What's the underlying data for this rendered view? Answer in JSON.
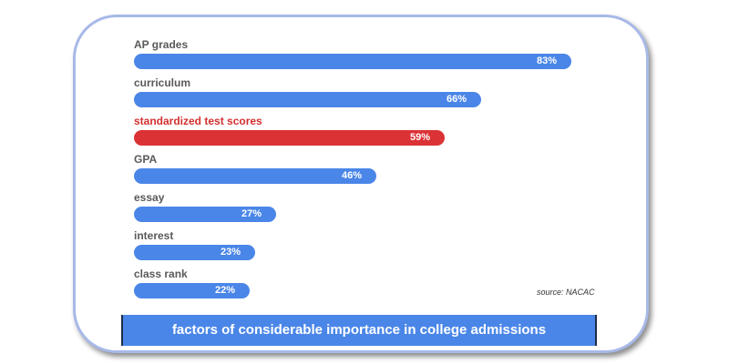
{
  "chart_data": {
    "type": "bar",
    "orientation": "horizontal",
    "categories": [
      "AP grades",
      "curriculum",
      "standardized test scores",
      "GPA",
      "essay",
      "interest",
      "class rank"
    ],
    "values": [
      83,
      66,
      59,
      46,
      27,
      23,
      22
    ],
    "value_labels": [
      "83%",
      "66%",
      "59%",
      "46%",
      "27%",
      "23%",
      "22%"
    ],
    "highlighted_category": "standardized test scores",
    "title": "factors of considerable importance in college admissions",
    "source": "source: NACAC",
    "xlabel": "",
    "ylabel": "",
    "xlim": [
      0,
      100
    ],
    "grid": false,
    "colors": {
      "bar": "#4a86e8",
      "highlight": "#db3236",
      "caption_bg": "#4a86e8"
    }
  }
}
